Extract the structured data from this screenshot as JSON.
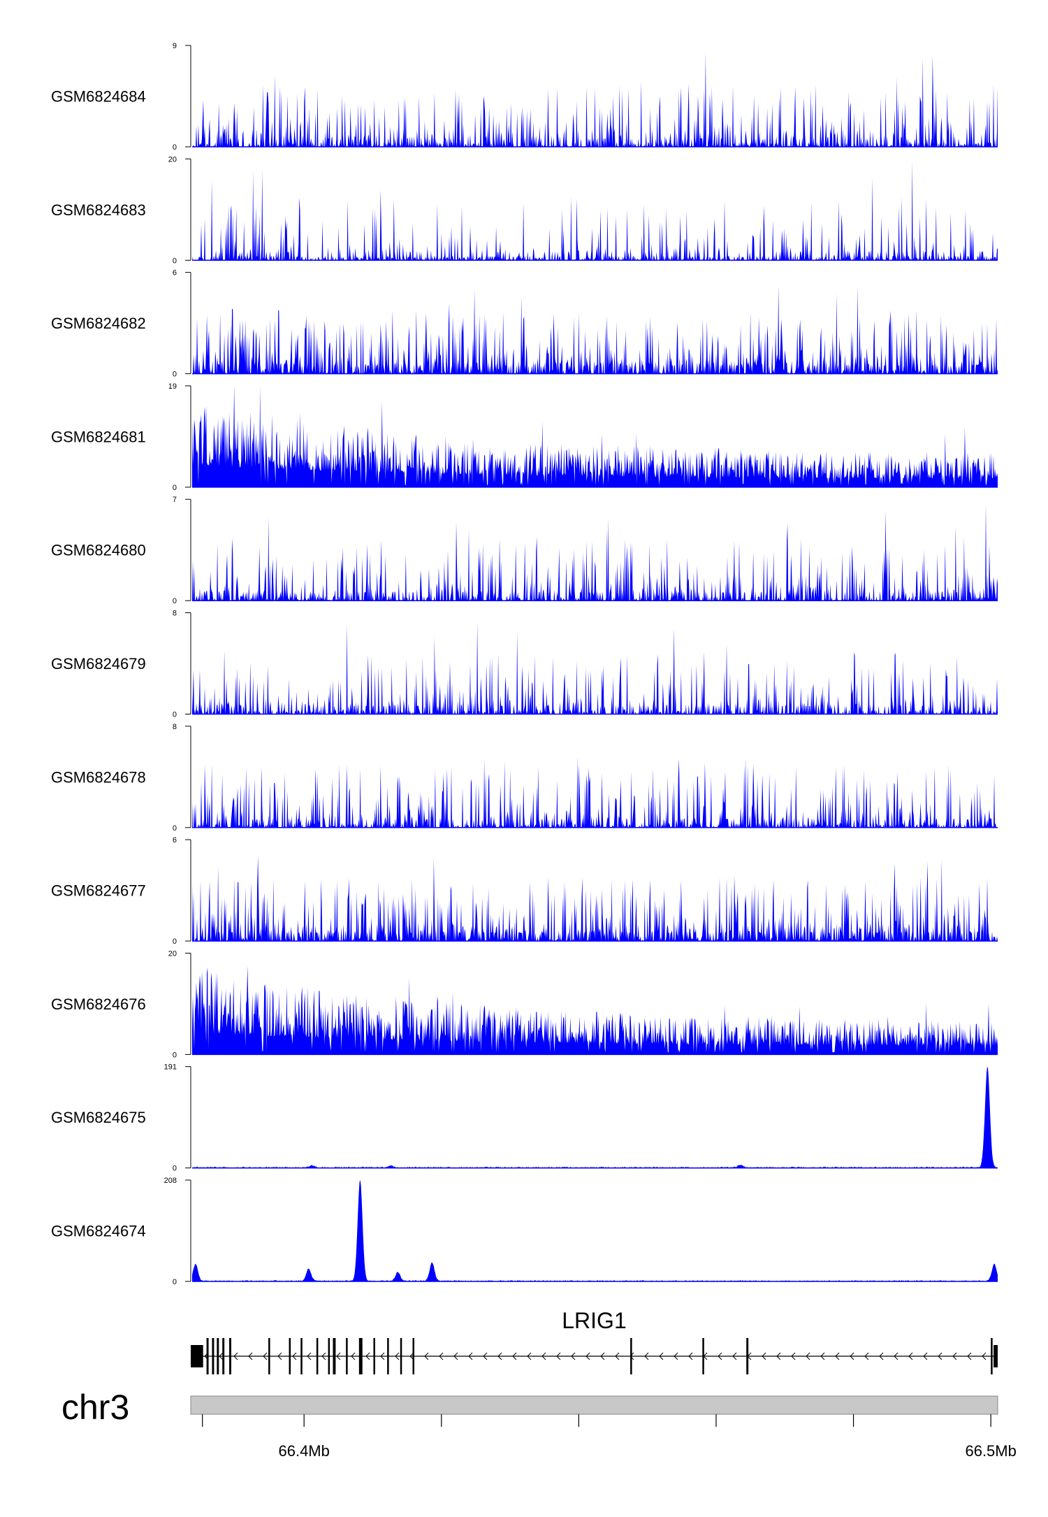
{
  "chart_data": {
    "type": "area",
    "title": "",
    "fill_color": "#0000ff",
    "x_unit": "Mb",
    "x_range": [
      66.3835,
      66.501
    ],
    "tracks": [
      {
        "name": "GSM6824684",
        "ymax": 9,
        "ytick_labels": [
          "9",
          "0"
        ],
        "pattern": "spiky",
        "peaks": []
      },
      {
        "name": "GSM6824683",
        "ymax": 20,
        "ytick_labels": [
          "20",
          "0"
        ],
        "pattern": "sparse-spiky",
        "peaks": []
      },
      {
        "name": "GSM6824682",
        "ymax": 6,
        "ytick_labels": [
          "6",
          "0"
        ],
        "pattern": "dense-spiky",
        "peaks": []
      },
      {
        "name": "GSM6824681",
        "ymax": 19,
        "ytick_labels": [
          "19",
          "0"
        ],
        "pattern": "broad-decay",
        "peaks": []
      },
      {
        "name": "GSM6824680",
        "ymax": 7,
        "ytick_labels": [
          "7",
          "0"
        ],
        "pattern": "spiky",
        "peaks": []
      },
      {
        "name": "GSM6824679",
        "ymax": 8,
        "ytick_labels": [
          "8",
          "0"
        ],
        "pattern": "spiky",
        "peaks": []
      },
      {
        "name": "GSM6824678",
        "ymax": 8,
        "ytick_labels": [
          "8",
          "0"
        ],
        "pattern": "spiky",
        "peaks": []
      },
      {
        "name": "GSM6824677",
        "ymax": 6,
        "ytick_labels": [
          "6",
          "0"
        ],
        "pattern": "dense-spiky",
        "peaks": []
      },
      {
        "name": "GSM6824676",
        "ymax": 20,
        "ytick_labels": [
          "20",
          "0"
        ],
        "pattern": "broad-decay",
        "peaks": []
      },
      {
        "name": "GSM6824675",
        "ymax": 191,
        "ytick_labels": [
          "191",
          "0"
        ],
        "pattern": "flat-peaks",
        "peaks": [
          {
            "x": 66.401,
            "y": 4
          },
          {
            "x": 66.4125,
            "y": 3
          },
          {
            "x": 66.4635,
            "y": 5
          },
          {
            "x": 66.4995,
            "y": 191
          }
        ]
      },
      {
        "name": "GSM6824674",
        "ymax": 208,
        "ytick_labels": [
          "208",
          "0"
        ],
        "pattern": "flat-peaks",
        "peaks": [
          {
            "x": 66.384,
            "y": 35
          },
          {
            "x": 66.4005,
            "y": 25
          },
          {
            "x": 66.408,
            "y": 208
          },
          {
            "x": 66.4135,
            "y": 18
          },
          {
            "x": 66.4185,
            "y": 38
          },
          {
            "x": 66.5005,
            "y": 35
          }
        ]
      }
    ],
    "gene": {
      "name": "LRIG1",
      "strand": "-",
      "start": 66.3835,
      "end": 66.501,
      "exons": [
        {
          "start": 66.3835,
          "end": 66.3853
        },
        {
          "start": 66.3858,
          "end": 66.3861
        },
        {
          "start": 66.3866,
          "end": 66.3869
        },
        {
          "start": 66.3873,
          "end": 66.3876
        },
        {
          "start": 66.3881,
          "end": 66.3884
        },
        {
          "start": 66.3891,
          "end": 66.3894
        },
        {
          "start": 66.3948,
          "end": 66.395
        },
        {
          "start": 66.3978,
          "end": 66.398
        },
        {
          "start": 66.3995,
          "end": 66.3997
        },
        {
          "start": 66.4018,
          "end": 66.402
        },
        {
          "start": 66.4035,
          "end": 66.4037
        },
        {
          "start": 66.4042,
          "end": 66.4046
        },
        {
          "start": 66.4061,
          "end": 66.4063
        },
        {
          "start": 66.408,
          "end": 66.4085
        },
        {
          "start": 66.4101,
          "end": 66.4103
        },
        {
          "start": 66.4121,
          "end": 66.4123
        },
        {
          "start": 66.414,
          "end": 66.4142
        },
        {
          "start": 66.4158,
          "end": 66.416
        },
        {
          "start": 66.4475,
          "end": 66.4477
        },
        {
          "start": 66.458,
          "end": 66.4582
        },
        {
          "start": 66.4644,
          "end": 66.4647
        },
        {
          "start": 66.5,
          "end": 66.5002
        },
        {
          "start": 66.5004,
          "end": 66.501
        }
      ]
    },
    "chromosome": "chr3",
    "x_ticks": [
      66.3852,
      66.4,
      66.42,
      66.44,
      66.46,
      66.48,
      66.5
    ],
    "x_tick_labels": [
      {
        "value": 66.4,
        "label": "66.4Mb"
      },
      {
        "value": 66.5,
        "label": "66.5Mb"
      }
    ]
  }
}
